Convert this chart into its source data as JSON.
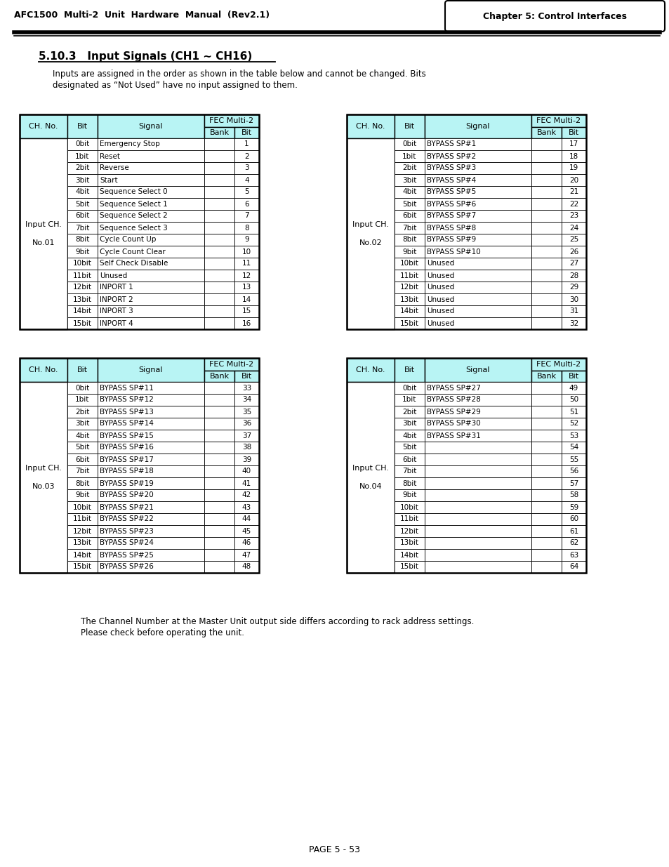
{
  "page_title_left": "AFC1500  Multi-2  Unit  Hardware  Manual  (Rev2.1)",
  "page_title_right": "Chapter 5: Control Interfaces",
  "section_title": "5.10.3   Input Signals (CH1 ∼ CH16)",
  "section_desc1": "Inputs are assigned in the order as shown in the table below and cannot be changed. Bits",
  "section_desc2": "designated as “Not Used” have no input assigned to them.",
  "footer": "PAGE 5 - 53",
  "note_line1": "The Channel Number at the Master Unit output side differs according to rack address settings.",
  "note_line2": "Please check before operating the unit.",
  "header_bg": "#b8f4f4",
  "table1": {
    "ch_label": "Input CH.\n\nNo.01",
    "rows": [
      [
        "0bit",
        "Emergency Stop",
        "",
        "1"
      ],
      [
        "1bit",
        "Reset",
        "",
        "2"
      ],
      [
        "2bit",
        "Reverse",
        "",
        "3"
      ],
      [
        "3bit",
        "Start",
        "",
        "4"
      ],
      [
        "4bit",
        "Sequence Select 0",
        "",
        "5"
      ],
      [
        "5bit",
        "Sequence Select 1",
        "",
        "6"
      ],
      [
        "6bit",
        "Sequence Select 2",
        "",
        "7"
      ],
      [
        "7bit",
        "Sequence Select 3",
        "",
        "8"
      ],
      [
        "8bit",
        "Cycle Count Up",
        "",
        "9"
      ],
      [
        "9bit",
        "Cycle Count Clear",
        "",
        "10"
      ],
      [
        "10bit",
        "Self Check Disable",
        "",
        "11"
      ],
      [
        "11bit",
        "Unused",
        "",
        "12"
      ],
      [
        "12bit",
        "INPORT 1",
        "",
        "13"
      ],
      [
        "13bit",
        "INPORT 2",
        "",
        "14"
      ],
      [
        "14bit",
        "INPORT 3",
        "",
        "15"
      ],
      [
        "15bit",
        "INPORT 4",
        "",
        "16"
      ]
    ]
  },
  "table2": {
    "ch_label": "Input CH.\n\nNo.02",
    "rows": [
      [
        "0bit",
        "BYPASS SP#1",
        "",
        "17"
      ],
      [
        "1bit",
        "BYPASS SP#2",
        "",
        "18"
      ],
      [
        "2bit",
        "BYPASS SP#3",
        "",
        "19"
      ],
      [
        "3bit",
        "BYPASS SP#4",
        "",
        "20"
      ],
      [
        "4bit",
        "BYPASS SP#5",
        "",
        "21"
      ],
      [
        "5bit",
        "BYPASS SP#6",
        "",
        "22"
      ],
      [
        "6bit",
        "BYPASS SP#7",
        "",
        "23"
      ],
      [
        "7bit",
        "BYPASS SP#8",
        "",
        "24"
      ],
      [
        "8bit",
        "BYPASS SP#9",
        "",
        "25"
      ],
      [
        "9bit",
        "BYPASS SP#10",
        "",
        "26"
      ],
      [
        "10bit",
        "Unused",
        "",
        "27"
      ],
      [
        "11bit",
        "Unused",
        "",
        "28"
      ],
      [
        "12bit",
        "Unused",
        "",
        "29"
      ],
      [
        "13bit",
        "Unused",
        "",
        "30"
      ],
      [
        "14bit",
        "Unused",
        "",
        "31"
      ],
      [
        "15bit",
        "Unused",
        "",
        "32"
      ]
    ]
  },
  "table3": {
    "ch_label": "Input CH.\n\nNo.03",
    "rows": [
      [
        "0bit",
        "BYPASS SP#11",
        "",
        "33"
      ],
      [
        "1bit",
        "BYPASS SP#12",
        "",
        "34"
      ],
      [
        "2bit",
        "BYPASS SP#13",
        "",
        "35"
      ],
      [
        "3bit",
        "BYPASS SP#14",
        "",
        "36"
      ],
      [
        "4bit",
        "BYPASS SP#15",
        "",
        "37"
      ],
      [
        "5bit",
        "BYPASS SP#16",
        "",
        "38"
      ],
      [
        "6bit",
        "BYPASS SP#17",
        "",
        "39"
      ],
      [
        "7bit",
        "BYPASS SP#18",
        "",
        "40"
      ],
      [
        "8bit",
        "BYPASS SP#19",
        "",
        "41"
      ],
      [
        "9bit",
        "BYPASS SP#20",
        "",
        "42"
      ],
      [
        "10bit",
        "BYPASS SP#21",
        "",
        "43"
      ],
      [
        "11bit",
        "BYPASS SP#22",
        "",
        "44"
      ],
      [
        "12bit",
        "BYPASS SP#23",
        "",
        "45"
      ],
      [
        "13bit",
        "BYPASS SP#24",
        "",
        "46"
      ],
      [
        "14bit",
        "BYPASS SP#25",
        "",
        "47"
      ],
      [
        "15bit",
        "BYPASS SP#26",
        "",
        "48"
      ]
    ]
  },
  "table4": {
    "ch_label": "Input CH.\n\nNo.04",
    "rows": [
      [
        "0bit",
        "BYPASS SP#27",
        "",
        "49"
      ],
      [
        "1bit",
        "BYPASS SP#28",
        "",
        "50"
      ],
      [
        "2bit",
        "BYPASS SP#29",
        "",
        "51"
      ],
      [
        "3bit",
        "BYPASS SP#30",
        "",
        "52"
      ],
      [
        "4bit",
        "BYPASS SP#31",
        "",
        "53"
      ],
      [
        "5bit",
        "",
        "",
        "54"
      ],
      [
        "6bit",
        "",
        "",
        "55"
      ],
      [
        "7bit",
        "",
        "",
        "56"
      ],
      [
        "8bit",
        "",
        "",
        "57"
      ],
      [
        "9bit",
        "",
        "",
        "58"
      ],
      [
        "10bit",
        "",
        "",
        "59"
      ],
      [
        "11bit",
        "",
        "",
        "60"
      ],
      [
        "12bit",
        "",
        "",
        "61"
      ],
      [
        "13bit",
        "",
        "",
        "62"
      ],
      [
        "14bit",
        "",
        "",
        "63"
      ],
      [
        "15bit",
        "",
        "",
        "64"
      ]
    ]
  }
}
